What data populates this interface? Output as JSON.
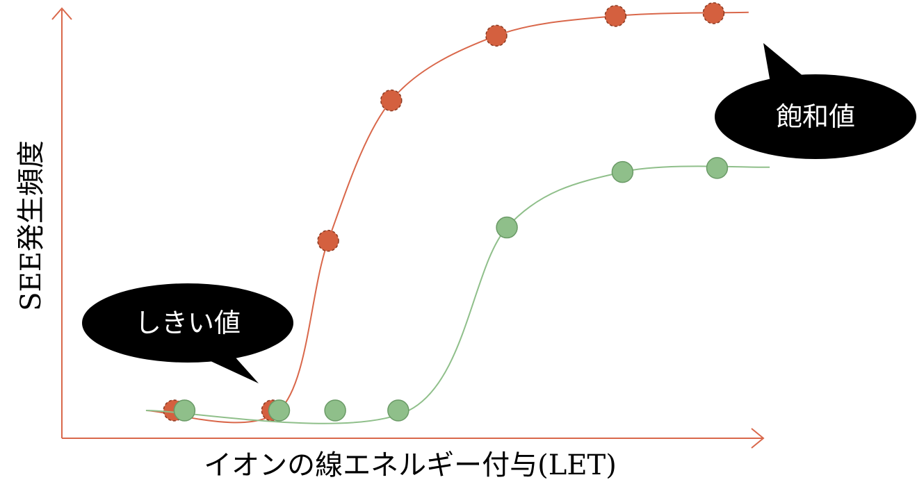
{
  "axes": {
    "x_label": "イオンの線エネルギー付与(LET)",
    "y_label": "SEE発生頻度"
  },
  "callouts": {
    "threshold": "しきい値",
    "saturation": "飽和値"
  },
  "colors": {
    "axis": "#d9674a",
    "series_red_line": "#d9674a",
    "series_red_marker": "#d4603f",
    "series_red_marker_border": "#8a3a22",
    "series_green_line": "#8fbf8a",
    "series_green_marker": "#8fbf8a",
    "series_green_marker_border": "#6a9a66",
    "bubble_fill": "#000000",
    "bubble_text": "#ffffff"
  },
  "chart_data": {
    "type": "scatter",
    "title": "",
    "xlabel": "イオンの線エネルギー付与(LET)",
    "ylabel": "SEE発生頻度",
    "xlim": [
      0,
      1000
    ],
    "ylim": [
      0,
      1000
    ],
    "ticks": "none",
    "grid": false,
    "series": [
      {
        "color_key": "red",
        "points": [
          [
            160,
            0
          ],
          [
            300,
            0
          ],
          [
            380,
            422
          ],
          [
            470,
            771
          ],
          [
            620,
            932
          ],
          [
            790,
            981
          ],
          [
            930,
            988
          ]
        ],
        "curve": [
          [
            120,
            0
          ],
          [
            310,
            0
          ],
          [
            380,
            422
          ],
          [
            470,
            771
          ],
          [
            620,
            932
          ],
          [
            790,
            981
          ],
          [
            980,
            990
          ]
        ]
      },
      {
        "color_key": "green",
        "points": [
          [
            175,
            0
          ],
          [
            310,
            0
          ],
          [
            390,
            0
          ],
          [
            480,
            0
          ],
          [
            635,
            455
          ],
          [
            800,
            593
          ],
          [
            935,
            603
          ]
        ],
        "curve": [
          [
            120,
            0
          ],
          [
            495,
            0
          ],
          [
            635,
            455
          ],
          [
            800,
            593
          ],
          [
            1010,
            605
          ]
        ]
      }
    ]
  }
}
